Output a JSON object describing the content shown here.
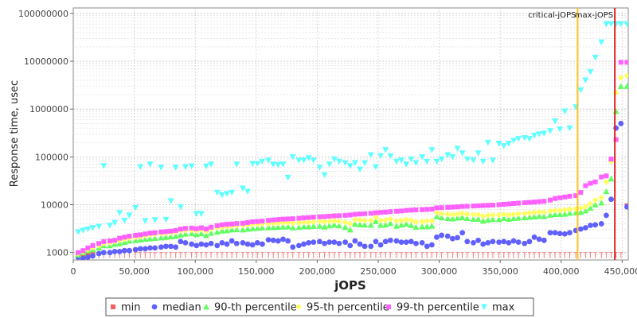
{
  "chart_data": {
    "type": "scatter",
    "xlabel": "jOPS",
    "ylabel": "Response time, usec",
    "xlim": [
      0,
      455000
    ],
    "ylim": [
      700,
      130000000
    ],
    "yscale": "log",
    "grid": true,
    "legend_position": "bottom",
    "x_ticks": [
      {
        "value": 0,
        "label": "0"
      },
      {
        "value": 50000,
        "label": "50,000"
      },
      {
        "value": 100000,
        "label": "100,000"
      },
      {
        "value": 150000,
        "label": "150,000"
      },
      {
        "value": 200000,
        "label": "200,000"
      },
      {
        "value": 250000,
        "label": "250,000"
      },
      {
        "value": 300000,
        "label": "300,000"
      },
      {
        "value": 350000,
        "label": "350,000"
      },
      {
        "value": 400000,
        "label": "400,000"
      },
      {
        "value": 450000,
        "label": "450,000"
      }
    ],
    "y_ticks": [
      {
        "value": 1000,
        "label": "1000"
      },
      {
        "value": 10000,
        "label": "10000"
      },
      {
        "value": 100000,
        "label": "100000"
      },
      {
        "value": 1000000,
        "label": "1000000"
      },
      {
        "value": 10000000,
        "label": "10000000"
      },
      {
        "value": 100000000,
        "label": "100000000"
      }
    ],
    "markers": [
      {
        "name": "critical-jOPS",
        "x": 413500,
        "color": "#ffc020"
      },
      {
        "name": "max-jOPS",
        "x": 444000,
        "color": "#dd2222"
      }
    ],
    "x": [
      4000,
      8000,
      12000,
      16000,
      21000,
      25000,
      30000,
      34000,
      38000,
      42000,
      46000,
      51000,
      55000,
      59000,
      63000,
      67000,
      72000,
      76000,
      80000,
      84000,
      88000,
      92000,
      97000,
      101000,
      105000,
      109000,
      113000,
      118000,
      122000,
      126000,
      130000,
      134000,
      139000,
      143000,
      147000,
      151000,
      155000,
      160000,
      164000,
      168000,
      172000,
      176000,
      180000,
      185000,
      189000,
      193000,
      197000,
      202000,
      206000,
      210000,
      214000,
      218000,
      223000,
      227000,
      231000,
      235000,
      239000,
      244000,
      248000,
      252000,
      256000,
      260000,
      265000,
      269000,
      273000,
      277000,
      281000,
      286000,
      290000,
      294000,
      298000,
      302000,
      307000,
      311000,
      315000,
      319000,
      323000,
      328000,
      332000,
      336000,
      340000,
      344000,
      349000,
      353000,
      357000,
      361000,
      365000,
      370000,
      374000,
      378000,
      382000,
      386000,
      391000,
      395000,
      399000,
      403000,
      407000,
      412000,
      416000,
      420000,
      424000,
      428000,
      433000,
      437000,
      441000,
      445000,
      449000,
      454000
    ],
    "series": [
      {
        "name": "min",
        "color": "#f06060",
        "shape": "square",
        "values": [
          850,
          850,
          900,
          950,
          1000,
          1000,
          1000,
          1000,
          1000,
          1000,
          1000,
          1000,
          1000,
          1000,
          1000,
          1000,
          1000,
          1000,
          1000,
          1000,
          1000,
          1000,
          1000,
          1000,
          1000,
          1000,
          1000,
          1000,
          1000,
          1000,
          1000,
          1000,
          1000,
          1000,
          1000,
          1000,
          1000,
          1000,
          1000,
          1000,
          1000,
          1000,
          1000,
          1000,
          1000,
          1000,
          1000,
          1000,
          1000,
          1000,
          1000,
          1000,
          1000,
          1000,
          1000,
          1000,
          1000,
          1000,
          1000,
          1000,
          1000,
          1000,
          1000,
          1000,
          1000,
          1000,
          1000,
          1000,
          1000,
          1000,
          1000,
          1000,
          1000,
          1000,
          1000,
          1000,
          1000,
          1000,
          1000,
          1000,
          1000,
          1000,
          1000,
          1000,
          1000,
          1000,
          1000,
          1000,
          1000,
          1000,
          1000,
          1000,
          1000,
          1000,
          1000,
          1000,
          1000,
          1000,
          1000,
          1000,
          1000,
          1000,
          1000,
          1000,
          1000,
          1000,
          1000,
          9500
        ]
      },
      {
        "name": "median",
        "color": "#6060ff",
        "shape": "circle",
        "values": [
          800,
          750,
          800,
          850,
          950,
          1000,
          1000,
          1050,
          1050,
          1100,
          1100,
          1150,
          1200,
          1200,
          1250,
          1250,
          1300,
          1350,
          1350,
          1300,
          1700,
          1600,
          1500,
          1400,
          1500,
          1450,
          1550,
          1400,
          1600,
          1500,
          1750,
          1550,
          1600,
          1500,
          1450,
          1600,
          1500,
          1850,
          1800,
          1750,
          1900,
          1750,
          1300,
          1400,
          1500,
          1600,
          1650,
          1700,
          1550,
          1650,
          1650,
          1550,
          1650,
          1400,
          1750,
          1500,
          1350,
          1350,
          1700,
          1450,
          1700,
          1800,
          1750,
          1650,
          1650,
          1700,
          1550,
          1600,
          1350,
          1450,
          2100,
          2300,
          2200,
          1950,
          2050,
          2600,
          1700,
          1600,
          1800,
          1500,
          1600,
          1700,
          1650,
          1700,
          1600,
          1750,
          1650,
          1550,
          1700,
          2100,
          1900,
          1800,
          2600,
          2600,
          2500,
          2450,
          2600,
          2900,
          3100,
          3300,
          3700,
          3800,
          4000,
          6000,
          13000,
          400000,
          500000,
          9000
        ]
      },
      {
        "name": "90-th percentile",
        "color": "#60ff60",
        "shape": "triangle",
        "values": [
          900,
          1000,
          1100,
          1150,
          1250,
          1400,
          1400,
          1500,
          1550,
          1650,
          1750,
          1800,
          1850,
          1900,
          1950,
          2000,
          2050,
          2100,
          2150,
          2200,
          2350,
          2450,
          2500,
          2400,
          2500,
          2300,
          2550,
          2700,
          2850,
          2900,
          3000,
          3050,
          3000,
          3100,
          3200,
          3250,
          3300,
          3350,
          3350,
          3400,
          3450,
          3500,
          3300,
          3400,
          3500,
          3500,
          3550,
          3600,
          3450,
          3650,
          3800,
          3650,
          3400,
          3000,
          3950,
          3850,
          3800,
          3750,
          4500,
          3750,
          3800,
          4100,
          3600,
          3800,
          3950,
          3700,
          3400,
          3500,
          3500,
          3600,
          5700,
          5400,
          5200,
          5100,
          5300,
          5400,
          5200,
          5000,
          5000,
          4600,
          4800,
          5000,
          4900,
          5200,
          5000,
          5200,
          5300,
          5400,
          5500,
          5600,
          5800,
          5700,
          6100,
          6300,
          6300,
          6400,
          6700,
          6800,
          7000,
          7500,
          8500,
          10000,
          11000,
          19000,
          35000,
          900000,
          3000000,
          3000000
        ]
      },
      {
        "name": "95-th percentile",
        "color": "#ffff60",
        "shape": "diamond",
        "values": [
          950,
          1050,
          1150,
          1250,
          1400,
          1550,
          1600,
          1700,
          1800,
          1900,
          2000,
          2100,
          2150,
          2250,
          2350,
          2400,
          2500,
          2550,
          2600,
          2700,
          2900,
          2900,
          2950,
          2850,
          3000,
          2800,
          3100,
          3300,
          3400,
          3500,
          3550,
          3650,
          3700,
          3800,
          3900,
          3900,
          4000,
          4000,
          4100,
          4100,
          4200,
          4200,
          4100,
          4200,
          4300,
          4300,
          4400,
          4500,
          4400,
          4500,
          4600,
          4500,
          4300,
          4000,
          4900,
          4800,
          4700,
          4700,
          5500,
          4700,
          4800,
          5000,
          4600,
          4700,
          4900,
          4700,
          4400,
          4400,
          4600,
          4600,
          6900,
          6500,
          6300,
          6200,
          6400,
          6600,
          6300,
          6200,
          6200,
          5800,
          6000,
          6100,
          6100,
          6300,
          6100,
          6300,
          6500,
          6600,
          6700,
          6900,
          7100,
          7000,
          7400,
          7600,
          7600,
          7800,
          8100,
          8200,
          8500,
          9100,
          10500,
          12500,
          14000,
          30000,
          80000,
          2200000,
          4500000,
          5000000
        ]
      },
      {
        "name": "99-th percentile",
        "color": "#ff60ff",
        "shape": "square",
        "values": [
          1000,
          1100,
          1250,
          1400,
          1550,
          1700,
          1750,
          1800,
          2000,
          2100,
          2200,
          2300,
          2350,
          2450,
          2550,
          2600,
          2700,
          2750,
          2800,
          2900,
          3100,
          3200,
          3250,
          3150,
          3300,
          3100,
          3400,
          3650,
          3800,
          3900,
          3950,
          4050,
          4100,
          4250,
          4400,
          4450,
          4550,
          4700,
          4800,
          4900,
          5000,
          5050,
          5100,
          5200,
          5300,
          5400,
          5500,
          5600,
          5650,
          5750,
          5850,
          5900,
          6000,
          6100,
          6300,
          6400,
          6500,
          6600,
          6800,
          6900,
          7000,
          7200,
          7300,
          7400,
          7600,
          7700,
          7800,
          7900,
          8000,
          8100,
          8600,
          8700,
          8800,
          8900,
          9000,
          9200,
          9300,
          9400,
          9500,
          9600,
          9700,
          9800,
          10000,
          10200,
          10400,
          10600,
          10800,
          11000,
          11200,
          11400,
          11600,
          11800,
          12500,
          13500,
          14000,
          14500,
          15000,
          15500,
          18000,
          25000,
          28000,
          30000,
          38000,
          40000,
          90000,
          230000,
          9500000,
          9500000
        ]
      },
      {
        "name": "max",
        "color": "#60ffff",
        "shape": "triangle-down",
        "values": [
          2700,
          2900,
          3100,
          3300,
          3500,
          65000,
          3700,
          4200,
          6800,
          4700,
          6000,
          8600,
          62000,
          4600,
          70000,
          4800,
          60000,
          4900,
          12000,
          60000,
          9000,
          62000,
          64000,
          6500,
          6500,
          64000,
          70000,
          18000,
          16000,
          17000,
          18000,
          70000,
          22000,
          19000,
          72000,
          72000,
          80000,
          85000,
          70000,
          68000,
          70000,
          37000,
          100000,
          85000,
          85000,
          95000,
          85000,
          60000,
          42000,
          70000,
          90000,
          80000,
          75000,
          65000,
          75000,
          55000,
          75000,
          110000,
          62000,
          105000,
          140000,
          105000,
          80000,
          85000,
          70000,
          90000,
          75000,
          100000,
          80000,
          140000,
          80000,
          90000,
          110000,
          100000,
          150000,
          120000,
          90000,
          85000,
          120000,
          80000,
          200000,
          85000,
          190000,
          170000,
          190000,
          220000,
          240000,
          250000,
          240000,
          280000,
          300000,
          310000,
          350000,
          560000,
          380000,
          900000,
          400000,
          1100000,
          2500000,
          4000000,
          6000000,
          12000000,
          25000000,
          60000000,
          60000000,
          60000000,
          60000000,
          60000000
        ]
      }
    ]
  }
}
